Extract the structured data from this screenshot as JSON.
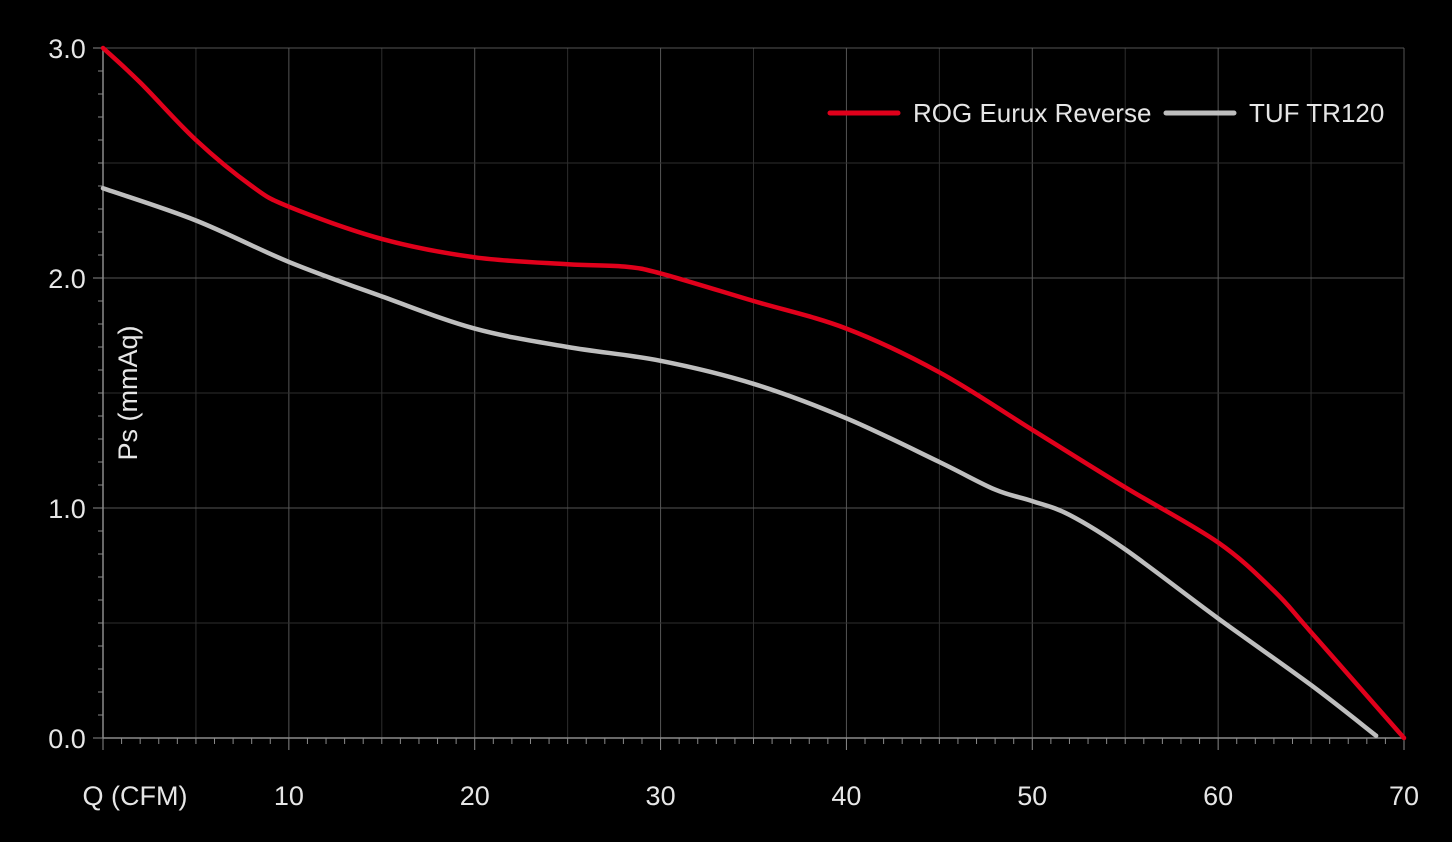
{
  "chart_data": {
    "type": "line",
    "xlabel": "Q (CFM)",
    "ylabel": "Ps (mmAq)",
    "xlim": [
      0,
      70
    ],
    "ylim": [
      0,
      3
    ],
    "x_ticks": [
      10,
      20,
      30,
      40,
      50,
      60,
      70
    ],
    "y_ticks": [
      "0.0",
      "1.0",
      "2.0",
      "3.0"
    ],
    "grid": true,
    "legend_position": "top-right",
    "series": [
      {
        "name": "ROG Eurux Reverse",
        "color": "#e0001b",
        "x": [
          0,
          2,
          5,
          8,
          10,
          15,
          20,
          25,
          28,
          30,
          35,
          40,
          45,
          50,
          55,
          60,
          63,
          65,
          70
        ],
        "y": [
          3.0,
          2.85,
          2.6,
          2.4,
          2.31,
          2.17,
          2.09,
          2.06,
          2.05,
          2.02,
          1.9,
          1.78,
          1.59,
          1.34,
          1.09,
          0.85,
          0.64,
          0.46,
          0.0
        ]
      },
      {
        "name": "TUF TR120",
        "color": "#bebebe",
        "x": [
          0,
          5,
          10,
          15,
          20,
          25,
          30,
          35,
          40,
          45,
          48,
          50,
          52,
          55,
          60,
          65,
          68.5
        ],
        "y": [
          2.39,
          2.25,
          2.07,
          1.92,
          1.78,
          1.7,
          1.64,
          1.54,
          1.39,
          1.2,
          1.08,
          1.03,
          0.97,
          0.82,
          0.52,
          0.23,
          0.01
        ]
      }
    ]
  }
}
